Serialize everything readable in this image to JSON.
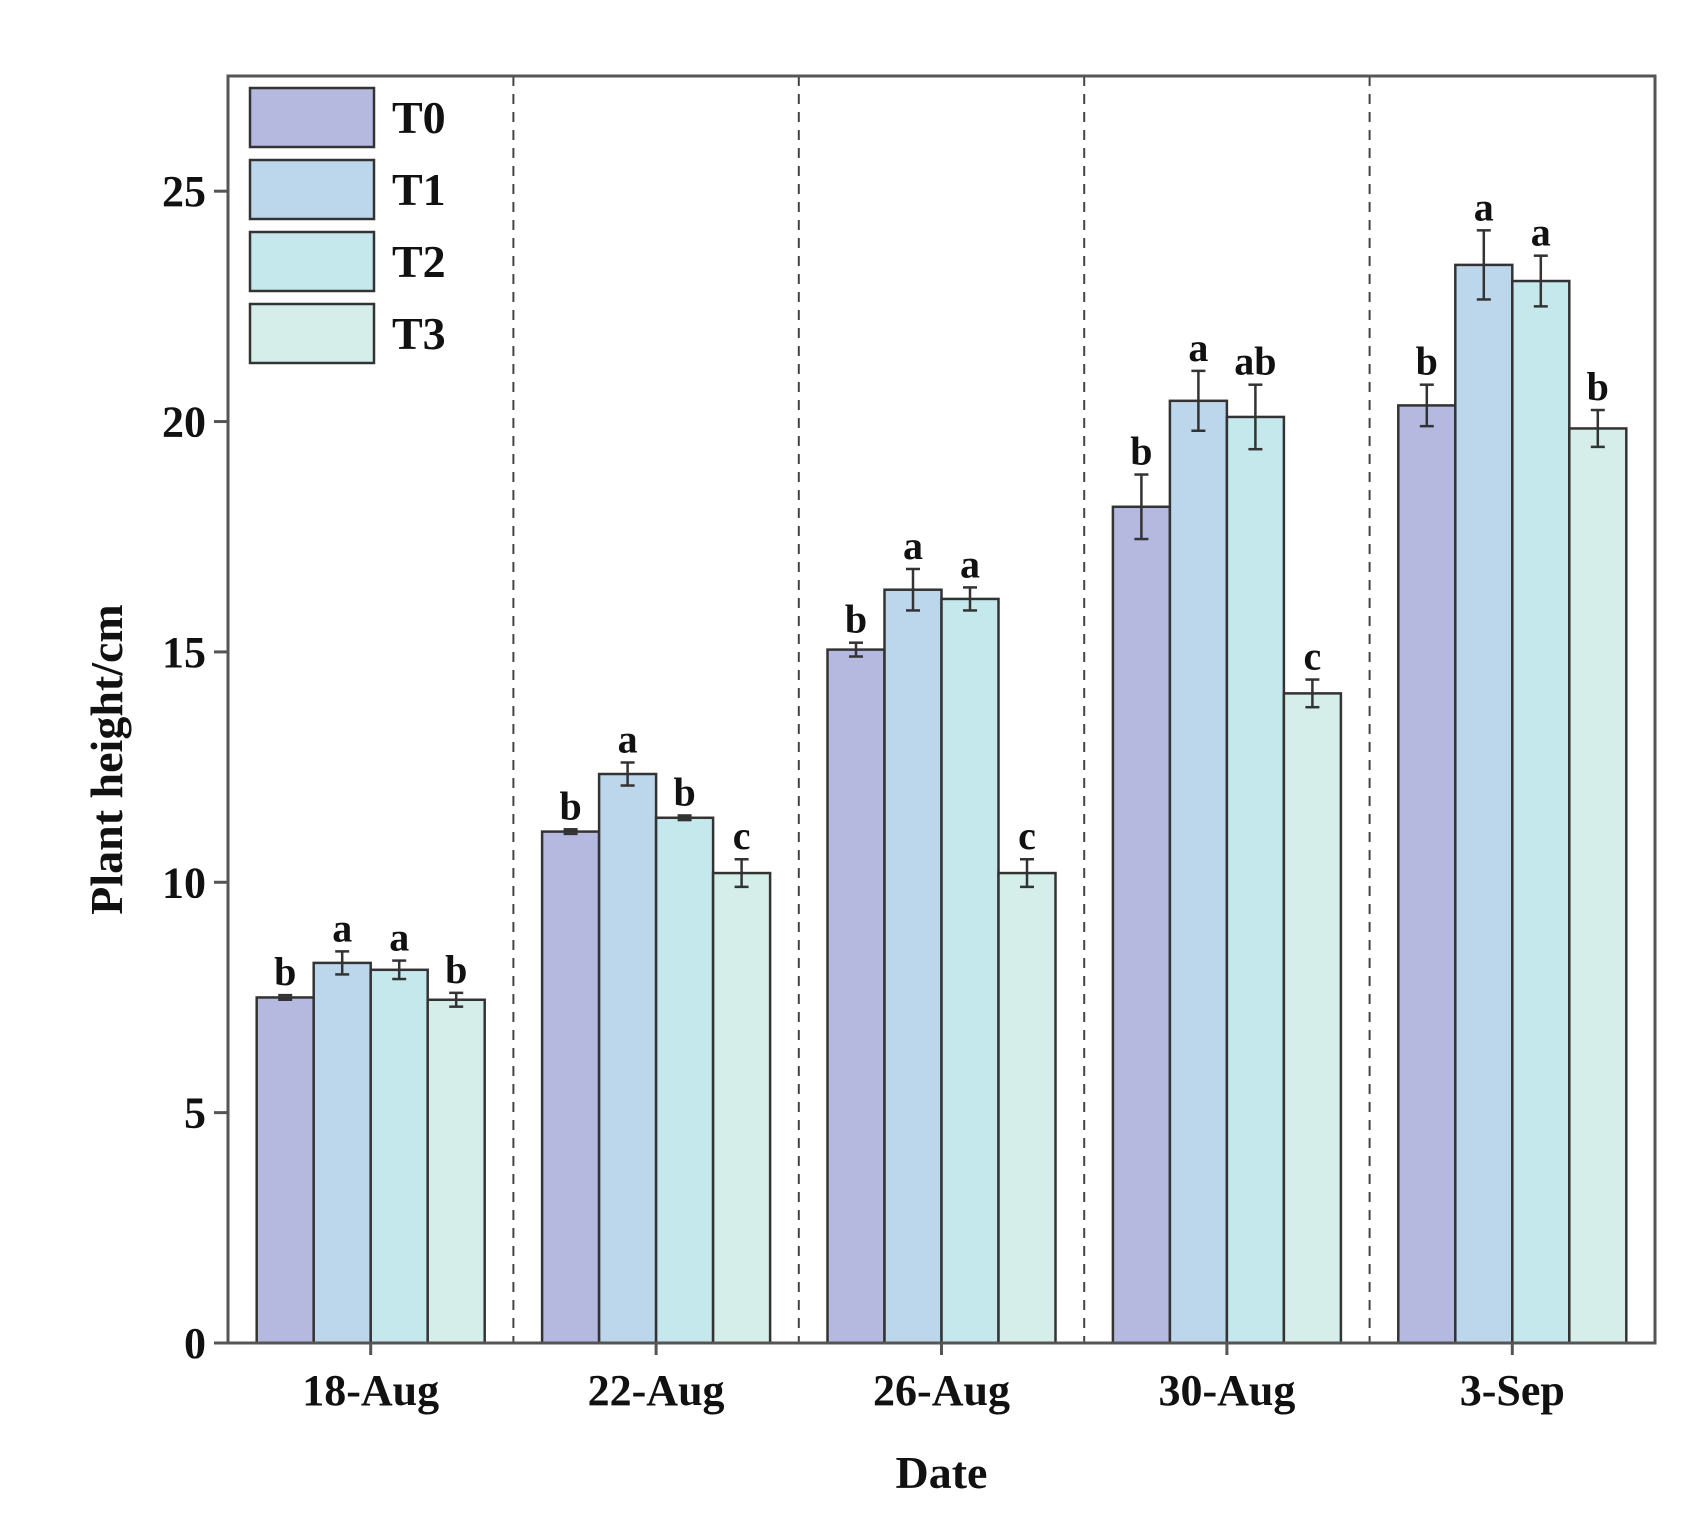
{
  "chart_data": {
    "type": "bar",
    "title": "",
    "xlabel": "Date",
    "ylabel": "Plant height/cm",
    "ylim": [
      0,
      27.5
    ],
    "yticks": [
      0,
      5,
      10,
      15,
      20,
      25
    ],
    "ytick_labels": [
      "0",
      "5",
      "10",
      "15",
      "20",
      "25"
    ],
    "categories": [
      "18-Aug",
      "22-Aug",
      "26-Aug",
      "30-Aug",
      "3-Sep"
    ],
    "group_separators": "dashed",
    "grid": false,
    "legend_position": "top-left",
    "series": [
      {
        "name": "T0",
        "color": "#b5b9e0",
        "values": [
          7.5,
          11.1,
          15.05,
          18.15,
          20.35
        ],
        "errors": [
          0.05,
          0.05,
          0.15,
          0.7,
          0.45
        ],
        "labels": [
          "b",
          "b",
          "b",
          "b",
          "b"
        ]
      },
      {
        "name": "T1",
        "color": "#bcd6ec",
        "values": [
          8.25,
          12.35,
          16.35,
          20.45,
          23.4
        ],
        "errors": [
          0.25,
          0.25,
          0.45,
          0.65,
          0.75
        ],
        "labels": [
          "a",
          "a",
          "a",
          "a",
          "a"
        ]
      },
      {
        "name": "T2",
        "color": "#c5e8ec",
        "values": [
          8.1,
          11.4,
          16.15,
          20.1,
          23.05
        ],
        "errors": [
          0.2,
          0.05,
          0.25,
          0.7,
          0.55
        ],
        "labels": [
          "a",
          "b",
          "a",
          "ab",
          "a"
        ]
      },
      {
        "name": "T3",
        "color": "#d6eee9",
        "values": [
          7.45,
          10.2,
          10.2,
          14.1,
          19.85
        ],
        "errors": [
          0.15,
          0.3,
          0.3,
          0.3,
          0.4
        ],
        "labels": [
          "b",
          "c",
          "c",
          "c",
          "b"
        ]
      }
    ]
  }
}
